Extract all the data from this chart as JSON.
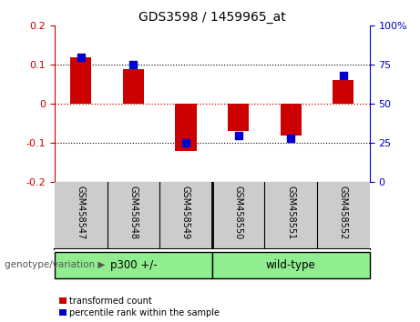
{
  "title": "GDS3598 / 1459965_at",
  "samples": [
    "GSM458547",
    "GSM458548",
    "GSM458549",
    "GSM458550",
    "GSM458551",
    "GSM458552"
  ],
  "red_values": [
    0.12,
    0.09,
    -0.12,
    -0.07,
    -0.08,
    0.06
  ],
  "blue_values": [
    80,
    75,
    25,
    30,
    28,
    68
  ],
  "ylim_left": [
    -0.2,
    0.2
  ],
  "ylim_right": [
    0,
    100
  ],
  "yticks_left": [
    -0.2,
    -0.1,
    0.0,
    0.1,
    0.2
  ],
  "ytick_labels_left": [
    "-0.2",
    "-0.1",
    "0",
    "0.1",
    "0.2"
  ],
  "yticks_right": [
    0,
    25,
    50,
    75,
    100
  ],
  "ytick_labels_right": [
    "0",
    "25",
    "50",
    "75",
    "100%"
  ],
  "red_color": "#cc0000",
  "blue_color": "#0000cc",
  "bar_width": 0.4,
  "blue_marker_size": 36,
  "background_color": "#ffffff",
  "group_bg_color": "#cccccc",
  "group_green_color": "#90ee90",
  "group_label": "genotype/variation",
  "group_defs": [
    {
      "label": "p300 +/-",
      "xstart": 0,
      "xend": 3
    },
    {
      "label": "wild-type",
      "xstart": 3,
      "xend": 6
    }
  ],
  "legend_items": [
    "transformed count",
    "percentile rank within the sample"
  ],
  "title_fontsize": 10
}
